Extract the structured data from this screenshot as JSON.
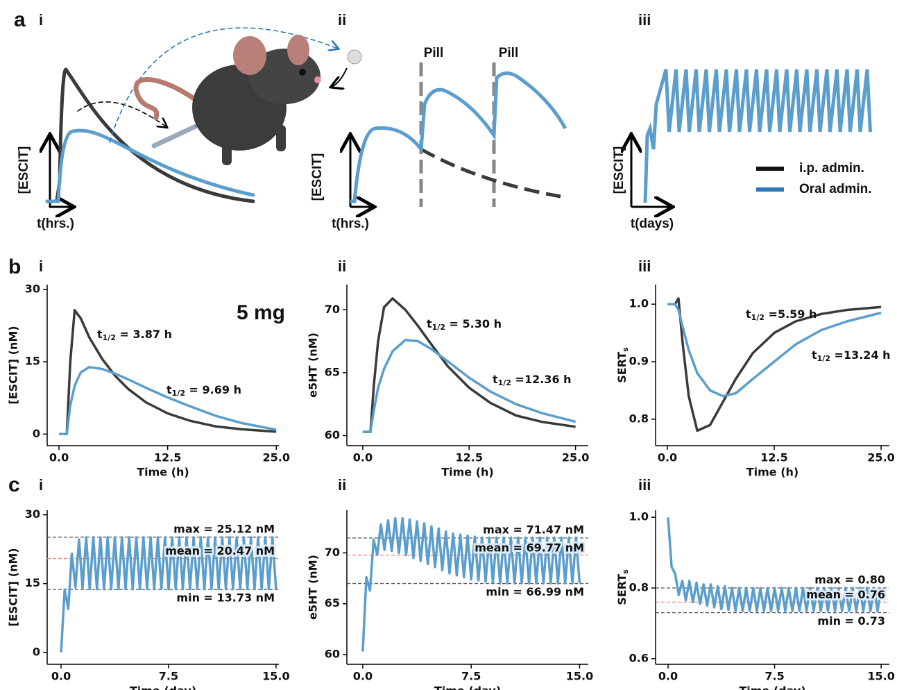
{
  "row_labels": [
    "a",
    "b",
    "c"
  ],
  "schematic": {
    "panels": [
      {
        "label": "i",
        "y_label": "[ESCIT]",
        "x_label": "t(hrs.)"
      },
      {
        "label": "ii",
        "y_label": "[ESCIT]",
        "x_label": "t(hrs.)",
        "annotations": [
          "Pill",
          "Pill"
        ]
      },
      {
        "label": "iii",
        "y_label": "[ESCIT]",
        "x_label": "t(days)"
      }
    ],
    "legend": [
      {
        "name": "i.p. admin.",
        "color": "#111111"
      },
      {
        "name": "Oral admin.",
        "color": "#2b78b4"
      }
    ]
  },
  "chart_data": [
    {
      "type": "line",
      "panel": "i",
      "x_label": "Time (h)",
      "y_label": "[ESCIT] (nM)",
      "x": [
        0,
        0.9,
        1.3,
        1.8,
        2.5,
        3.5,
        5,
        6.5,
        8,
        10,
        12.5,
        15,
        18,
        21,
        25
      ],
      "xlim": [
        -1.36,
        25.3
      ],
      "ylim": [
        -2.4,
        31
      ],
      "xticks": [
        {
          "value": 0,
          "label": "0.0"
        },
        12.5,
        {
          "value": 25,
          "label": "25.0"
        }
      ],
      "yticks": [
        0,
        15,
        30
      ],
      "series": [
        {
          "color": "#3a3a3a",
          "values": [
            0,
            0,
            15,
            25.7,
            24,
            20,
            15.5,
            12,
            9.3,
            6.6,
            4.3,
            2.8,
            1.6,
            1,
            0.5
          ]
        },
        {
          "color": "#5b9ecd",
          "values": [
            0,
            0,
            6,
            10,
            12.8,
            13.9,
            13.5,
            12.5,
            11.3,
            9.6,
            7.6,
            5.8,
            3.8,
            2.3,
            0.9
          ]
        }
      ],
      "annotations": [
        {
          "text": "5 mg",
          "color": "#2a7ab8"
        },
        {
          "text": "t",
          "subscript": "1/2",
          "suffix": " = 3.87 h",
          "color": "#222222"
        },
        {
          "text": "t",
          "subscript": "1/2",
          "suffix": " = 9.69 h",
          "color": "#2a7ab8"
        }
      ]
    },
    {
      "type": "line",
      "panel": "ii",
      "x_label": "Time (h)",
      "y_label": "e5HT (nM)",
      "x": [
        0,
        0.9,
        1.3,
        1.8,
        2.5,
        3.5,
        5,
        6.5,
        8,
        10,
        12.5,
        15,
        18,
        21,
        25
      ],
      "xlim": [
        -1.87,
        26.5
      ],
      "ylim": [
        59.2,
        72
      ],
      "xticks": [
        {
          "value": 0,
          "label": "0.0"
        },
        12.5,
        {
          "value": 25,
          "label": "25.0"
        }
      ],
      "yticks": [
        60,
        65,
        70
      ],
      "series": [
        {
          "color": "#3a3a3a",
          "values": [
            60.3,
            60.3,
            64,
            67.5,
            70.2,
            70.9,
            70,
            68.7,
            67.3,
            65.5,
            63.8,
            62.6,
            61.6,
            61.1,
            60.7
          ]
        },
        {
          "color": "#5b9ecd",
          "values": [
            60.3,
            60.3,
            62,
            63.8,
            65.3,
            66.7,
            67.6,
            67.5,
            66.9,
            65.9,
            64.6,
            63.5,
            62.5,
            61.8,
            61.1
          ]
        }
      ],
      "annotations": [
        {
          "text": "t",
          "subscript": "1/2",
          "suffix": " = 5.30 h",
          "color": "#222222"
        },
        {
          "text": "t",
          "subscript": "1/2",
          "suffix": " =12.36 h",
          "color": "#2a7ab8"
        }
      ]
    },
    {
      "type": "line",
      "panel": "iii",
      "x_label": "Time (h)",
      "y_label": {
        "text": "SERT",
        "subscript": "s"
      },
      "x": [
        0,
        0.9,
        1.3,
        1.8,
        2.5,
        3.5,
        5,
        6.5,
        8,
        10,
        12.5,
        15,
        18,
        21,
        25
      ],
      "xlim": [
        -1.38,
        25.97
      ],
      "ylim": [
        0.754,
        1.034
      ],
      "xticks": [
        {
          "value": 0,
          "label": "0.0"
        },
        12.5,
        {
          "value": 25,
          "label": "25.0"
        }
      ],
      "yticks": [
        0.8,
        0.9,
        {
          "value": 1,
          "label": "1.0"
        }
      ],
      "series": [
        {
          "color": "#3a3a3a",
          "values": [
            1,
            1,
            1.01,
            0.93,
            0.84,
            0.78,
            0.79,
            0.83,
            0.87,
            0.915,
            0.95,
            0.97,
            0.983,
            0.99,
            0.995
          ]
        },
        {
          "color": "#5b9ecd",
          "values": [
            1,
            1,
            0.99,
            0.96,
            0.92,
            0.88,
            0.85,
            0.84,
            0.845,
            0.87,
            0.9,
            0.93,
            0.955,
            0.97,
            0.985
          ]
        }
      ],
      "annotations": [
        {
          "text": "t",
          "subscript": "1/2",
          "suffix": " =5.59 h",
          "color": "#222222"
        },
        {
          "text": "t",
          "subscript": "1/2",
          "suffix": " =13.24 h",
          "color": "#2a7ab8"
        }
      ]
    },
    {
      "type": "line",
      "panel": "i",
      "x_label": "Time (day)",
      "y_label": "[ESCIT] (nM)",
      "x": [
        0,
        0.25,
        0.5,
        0.75,
        1,
        1.25,
        1.5,
        1.75,
        2,
        2.25,
        2.5,
        2.75,
        3,
        3.25,
        3.5,
        3.75,
        4,
        4.25,
        4.5,
        4.75,
        5,
        5.25,
        5.5,
        5.75,
        6,
        6.25,
        6.5,
        6.75,
        7,
        7.25,
        7.5,
        7.75,
        8,
        8.25,
        8.5,
        8.75,
        9,
        9.25,
        9.5,
        9.75,
        10,
        10.25,
        10.5,
        10.75,
        11,
        11.25,
        11.5,
        11.75,
        12,
        12.25,
        12.5,
        12.75,
        13,
        13.25,
        13.5,
        13.75,
        14,
        14.25,
        14.5,
        14.75,
        15
      ],
      "xlim": [
        -0.97,
        15.2
      ],
      "ylim": [
        -2.6,
        31
      ],
      "xticks": [
        {
          "value": 0,
          "label": "0.0"
        },
        7.5,
        {
          "value": 15,
          "label": "15.0"
        }
      ],
      "yticks": [
        0,
        15,
        30
      ],
      "series": [
        {
          "color": "#5b9ecd",
          "values": [
            0,
            13.7,
            9.5,
            21.5,
            14.2,
            24.6,
            14.0,
            25.1,
            13.8,
            25.1,
            13.8,
            25.1,
            13.8,
            25.1,
            13.8,
            25.1,
            13.8,
            25.1,
            13.8,
            25.1,
            13.8,
            25.1,
            13.8,
            25.1,
            13.8,
            25.1,
            13.8,
            25.1,
            13.8,
            25.1,
            13.8,
            25.1,
            13.8,
            25.1,
            13.8,
            25.1,
            13.8,
            25.1,
            13.8,
            25.1,
            13.8,
            25.1,
            13.8,
            25.1,
            13.8,
            25.1,
            13.8,
            25.1,
            13.8,
            25.1,
            13.8,
            25.1,
            13.8,
            25.1,
            13.8,
            25.1,
            13.8,
            25.1,
            13.8,
            25.1,
            13.8
          ]
        }
      ],
      "reference_lines": [
        {
          "value": 25.12,
          "label": "max = 25.12 nM",
          "color": "#555555"
        },
        {
          "value": 20.47,
          "label": "mean = 20.47 nM",
          "color": "#f08080"
        },
        {
          "value": 13.73,
          "label": "min = 13.73 nM",
          "color": "#555555"
        }
      ]
    },
    {
      "type": "line",
      "panel": "ii",
      "x_label": "Time (day)",
      "y_label": "e5HT (nM)",
      "x": [
        0,
        0.25,
        0.5,
        0.75,
        1,
        1.25,
        1.5,
        1.75,
        2,
        2.25,
        2.5,
        2.75,
        3,
        3.25,
        3.5,
        3.75,
        4,
        4.25,
        4.5,
        4.75,
        5,
        5.25,
        5.5,
        5.75,
        6,
        6.25,
        6.5,
        6.75,
        7,
        7.25,
        7.5,
        7.75,
        8,
        8.25,
        8.5,
        8.75,
        9,
        9.25,
        9.5,
        9.75,
        10,
        10.25,
        10.5,
        10.75,
        11,
        11.25,
        11.5,
        11.75,
        12,
        12.25,
        12.5,
        12.75,
        13,
        13.25,
        13.5,
        13.75,
        14,
        14.25,
        14.5,
        14.75,
        15
      ],
      "xlim": [
        -1.1,
        15.6
      ],
      "ylim": [
        59.04,
        74.2
      ],
      "xticks": [
        {
          "value": 0,
          "label": "0.0"
        },
        7.5,
        {
          "value": 15,
          "label": "15.0"
        }
      ],
      "yticks": [
        60,
        65,
        70
      ],
      "series": [
        {
          "color": "#5b9ecd",
          "values": [
            60.3,
            67.6,
            66.3,
            71.3,
            69.8,
            72.8,
            70.3,
            73.2,
            70.2,
            73.4,
            70.0,
            73.4,
            69.8,
            73.3,
            69.5,
            73.1,
            69.2,
            72.9,
            68.9,
            72.6,
            68.6,
            72.4,
            68.3,
            72.1,
            68.0,
            71.9,
            67.8,
            71.8,
            67.6,
            71.7,
            67.4,
            71.6,
            67.3,
            71.5,
            67.2,
            71.5,
            67.1,
            71.5,
            67.0,
            71.5,
            67.0,
            71.5,
            67.0,
            71.5,
            67.0,
            71.5,
            67.0,
            71.5,
            67.0,
            71.5,
            67.0,
            71.5,
            67.0,
            71.5,
            67.0,
            71.5,
            67.0,
            71.5,
            67.0,
            71.5,
            67.0
          ]
        }
      ],
      "reference_lines": [
        {
          "value": 71.47,
          "label": "max = 71.47 nM",
          "color": "#555555"
        },
        {
          "value": 69.77,
          "label": "mean = 69.77 nM",
          "color": "#f08080"
        },
        {
          "value": 66.99,
          "label": "min = 66.99 nM",
          "color": "#555555"
        }
      ]
    },
    {
      "type": "line",
      "panel": "iii",
      "x_label": "Time (day)",
      "y_label": {
        "text": "SERT",
        "subscript": "s"
      },
      "x": [
        0,
        0.25,
        0.5,
        0.75,
        1,
        1.25,
        1.5,
        1.75,
        2,
        2.25,
        2.5,
        2.75,
        3,
        3.25,
        3.5,
        3.75,
        4,
        4.25,
        4.5,
        4.75,
        5,
        5.25,
        5.5,
        5.75,
        6,
        6.25,
        6.5,
        6.75,
        7,
        7.25,
        7.5,
        7.75,
        8,
        8.25,
        8.5,
        8.75,
        9,
        9.25,
        9.5,
        9.75,
        10,
        10.25,
        10.5,
        10.75,
        11,
        11.25,
        11.5,
        11.75,
        12,
        12.25,
        12.5,
        12.75,
        13,
        13.25,
        13.5,
        13.75,
        14,
        14.25,
        14.5,
        14.75,
        15
      ],
      "xlim": [
        -0.88,
        15.58
      ],
      "ylim": [
        0.584,
        1.02
      ],
      "xticks": [
        {
          "value": 0,
          "label": "0.0"
        },
        7.5,
        {
          "value": 15,
          "label": "15.0"
        }
      ],
      "yticks": [
        0.6,
        0.8,
        {
          "value": 1,
          "label": "1.0"
        }
      ],
      "series": [
        {
          "color": "#5b9ecd",
          "values": [
            1.0,
            0.86,
            0.84,
            0.78,
            0.82,
            0.765,
            0.82,
            0.76,
            0.815,
            0.755,
            0.81,
            0.75,
            0.81,
            0.745,
            0.805,
            0.74,
            0.805,
            0.738,
            0.8,
            0.735,
            0.8,
            0.735,
            0.8,
            0.735,
            0.8,
            0.735,
            0.8,
            0.735,
            0.8,
            0.735,
            0.8,
            0.735,
            0.8,
            0.735,
            0.8,
            0.735,
            0.8,
            0.735,
            0.8,
            0.735,
            0.8,
            0.735,
            0.8,
            0.735,
            0.8,
            0.735,
            0.8,
            0.735,
            0.8,
            0.735,
            0.8,
            0.735,
            0.8,
            0.735,
            0.8,
            0.735,
            0.8,
            0.735,
            0.8,
            0.735,
            0.8
          ]
        }
      ],
      "reference_lines": [
        {
          "value": 0.8,
          "label": "max = 0.80",
          "color": "#555555"
        },
        {
          "value": 0.76,
          "label": "mean = 0.76",
          "color": "#f08080"
        },
        {
          "value": 0.73,
          "label": "min = 0.73",
          "color": "#555555"
        }
      ]
    }
  ]
}
